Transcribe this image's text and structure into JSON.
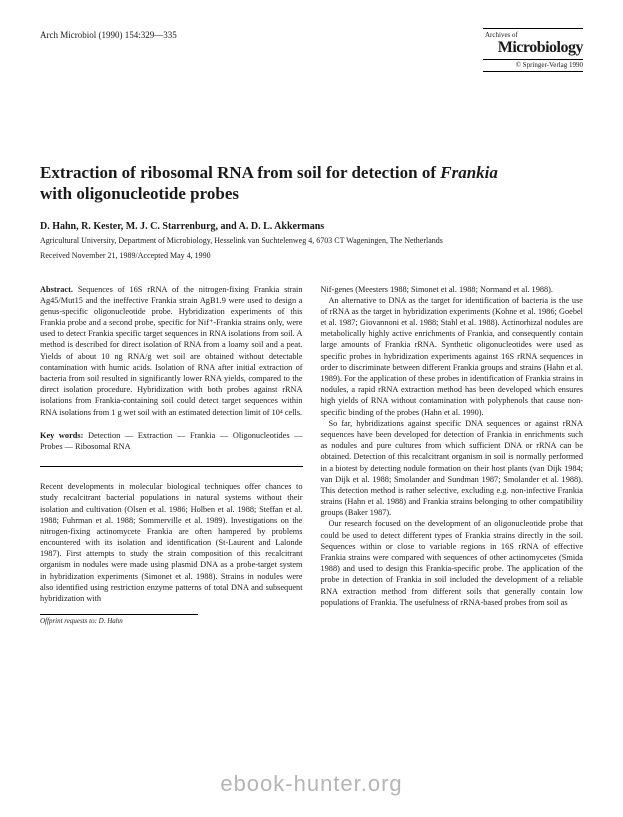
{
  "header": {
    "citation": "Arch Microbiol (1990) 154:329—335",
    "journal_prefix": "Archives of",
    "journal_name": "Microbiology",
    "copyright": "© Springer-Verlag 1990"
  },
  "title_line1": "Extraction of ribosomal RNA from soil for detection of ",
  "title_italic": "Frankia",
  "title_line2": "with oligonucleotide probes",
  "authors": "D. Hahn, R. Kester, M. J. C. Starrenburg, and A. D. L. Akkermans",
  "affiliation": "Agricultural University, Department of Microbiology, Hesselink van Suchtelenweg 4, 6703 CT Wageningen, The Netherlands",
  "received": "Received November 21, 1989/Accepted May 4, 1990",
  "left_col": {
    "abstract_label": "Abstract.",
    "abstract": " Sequences of 16S rRNA of the nitrogen-fixing Frankia strain Ag45/Mut15 and the ineffective Frankia strain AgB1.9 were used to design a genus-specific oligonucleotide probe. Hybridization experiments of this Frankia probe and a second probe, specific for Nif⁺-Frankia strains only, were used to detect Frankia specific target sequences in RNA isolations from soil. A method is described for direct isolation of RNA from a loamy soil and a peat. Yields of about 10 ng RNA/g wet soil are obtained without detectable contamination with humic acids. Isolation of RNA after initial extraction of bacteria from soil resulted in significantly lower RNA yields, compared to the direct isolation procedure. Hybridization with both probes against rRNA isolations from Frankia-containing soil could detect target sequences within RNA isolations from 1 g wet soil with an estimated detection limit of 10⁴ cells.",
    "keywords_label": "Key words:",
    "keywords": " Detection — Extraction — Frankia — Oligonucleotides — Probes — Ribosomal RNA",
    "intro": "Recent developments in molecular biological techniques offer chances to study recalcitrant bacterial populations in natural systems without their isolation and cultivation (Olsen et al. 1986; Holben et al. 1988; Steffan et al. 1988; Fuhrman et al. 1988; Sommerville et al. 1989). Investigations on the nitrogen-fixing actinomycete Frankia are often hampered by problems encountered with its isolation and identification (St-Laurent and Lalonde 1987). First attempts to study the strain composition of this recalcitrant organism in nodules were made using plasmid DNA as a probe-target system in hybridization experiments (Simonet et al. 1988). Strains in nodules were also identified using restriction enzyme patterns of total DNA and subsequent hybridization with",
    "offprint": "Offprint requests to: D. Hahn"
  },
  "right_col": {
    "p1": "Nif-genes (Meesters 1988; Simonet et al. 1988; Normand et al. 1988).",
    "p2": "An alternative to DNA as the target for identification of bacteria is the use of rRNA as the target in hybridization experiments (Kohne et al. 1986; Goebel et al. 1987; Giovannoni et al. 1988; Stahl et al. 1988). Actinorhizal nodules are metabolically highly active enrichments of Frankia, and consequently contain large amounts of Frankia rRNA. Synthetic oligonucleotides were used as specific probes in hybridization experiments against 16S rRNA sequences in order to discriminate between different Frankia groups and strains (Hahn et al. 1989). For the application of these probes in identification of Frankia strains in nodules, a rapid rRNA extraction method has been developed which ensures high yields of RNA without contamination with polyphenols that cause non-specific binding of the probes (Hahn et al. 1990).",
    "p3": "So far, hybridizations against specific DNA sequences or against rRNA sequences have been developed for detection of Frankia in enrichments such as nodules and pure cultures from which sufficient DNA or rRNA can be obtained. Detection of this recalcitrant organism in soil is normally performed in a biotest by detecting nodule formation on their host plants (van Dijk 1984; van Dijk et al. 1988; Smolander and Sundman 1987; Smolander et al. 1988). This detection method is rather selective, excluding e.g. non-infective Frankia strains (Hahn et al. 1988) and Frankia strains belonging to other compatibility groups (Baker 1987).",
    "p4": "Our research focused on the development of an oligonucleotide probe that could be used to detect different types of Frankia strains directly in the soil. Sequences within or close to variable regions in 16S rRNA of effective Frankia strains were compared with sequences of other actinomycetes (Smida 1988) and used to design this Frankia-specific probe. The application of the probe in detection of Frankia in soil included the development of a reliable RNA extraction method from different soils that generally contain low populations of Frankia. The usefulness of rRNA-based probes from soil as"
  },
  "watermark": "ebook-hunter.org"
}
